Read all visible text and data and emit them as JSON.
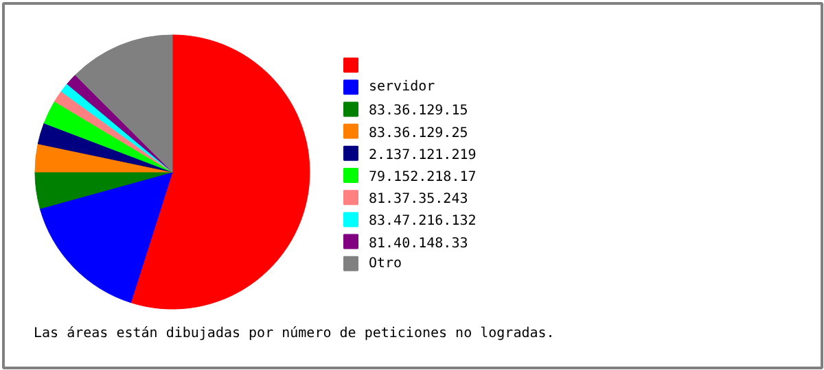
{
  "chart_data": {
    "type": "pie",
    "categories": [
      null,
      "servidor",
      "83.36.129.15",
      "83.36.129.25",
      "2.137.121.219",
      "79.152.218.17",
      "81.37.35.243",
      "83.47.216.132",
      "81.40.148.33",
      "Otro"
    ],
    "values": [
      54.9,
      15.8,
      4.3,
      3.3,
      2.5,
      2.8,
      1.4,
      1.1,
      1.4,
      12.5
    ],
    "colors": [
      "#ff0000",
      "#0000ff",
      "#008000",
      "#ff8000",
      "#000080",
      "#00ff00",
      "#ff8080",
      "#00ffff",
      "#800080",
      "#808080"
    ],
    "legend": "right",
    "annotations": [
      "Las áreas están dibujadas por número de peticiones no logradas."
    ]
  }
}
